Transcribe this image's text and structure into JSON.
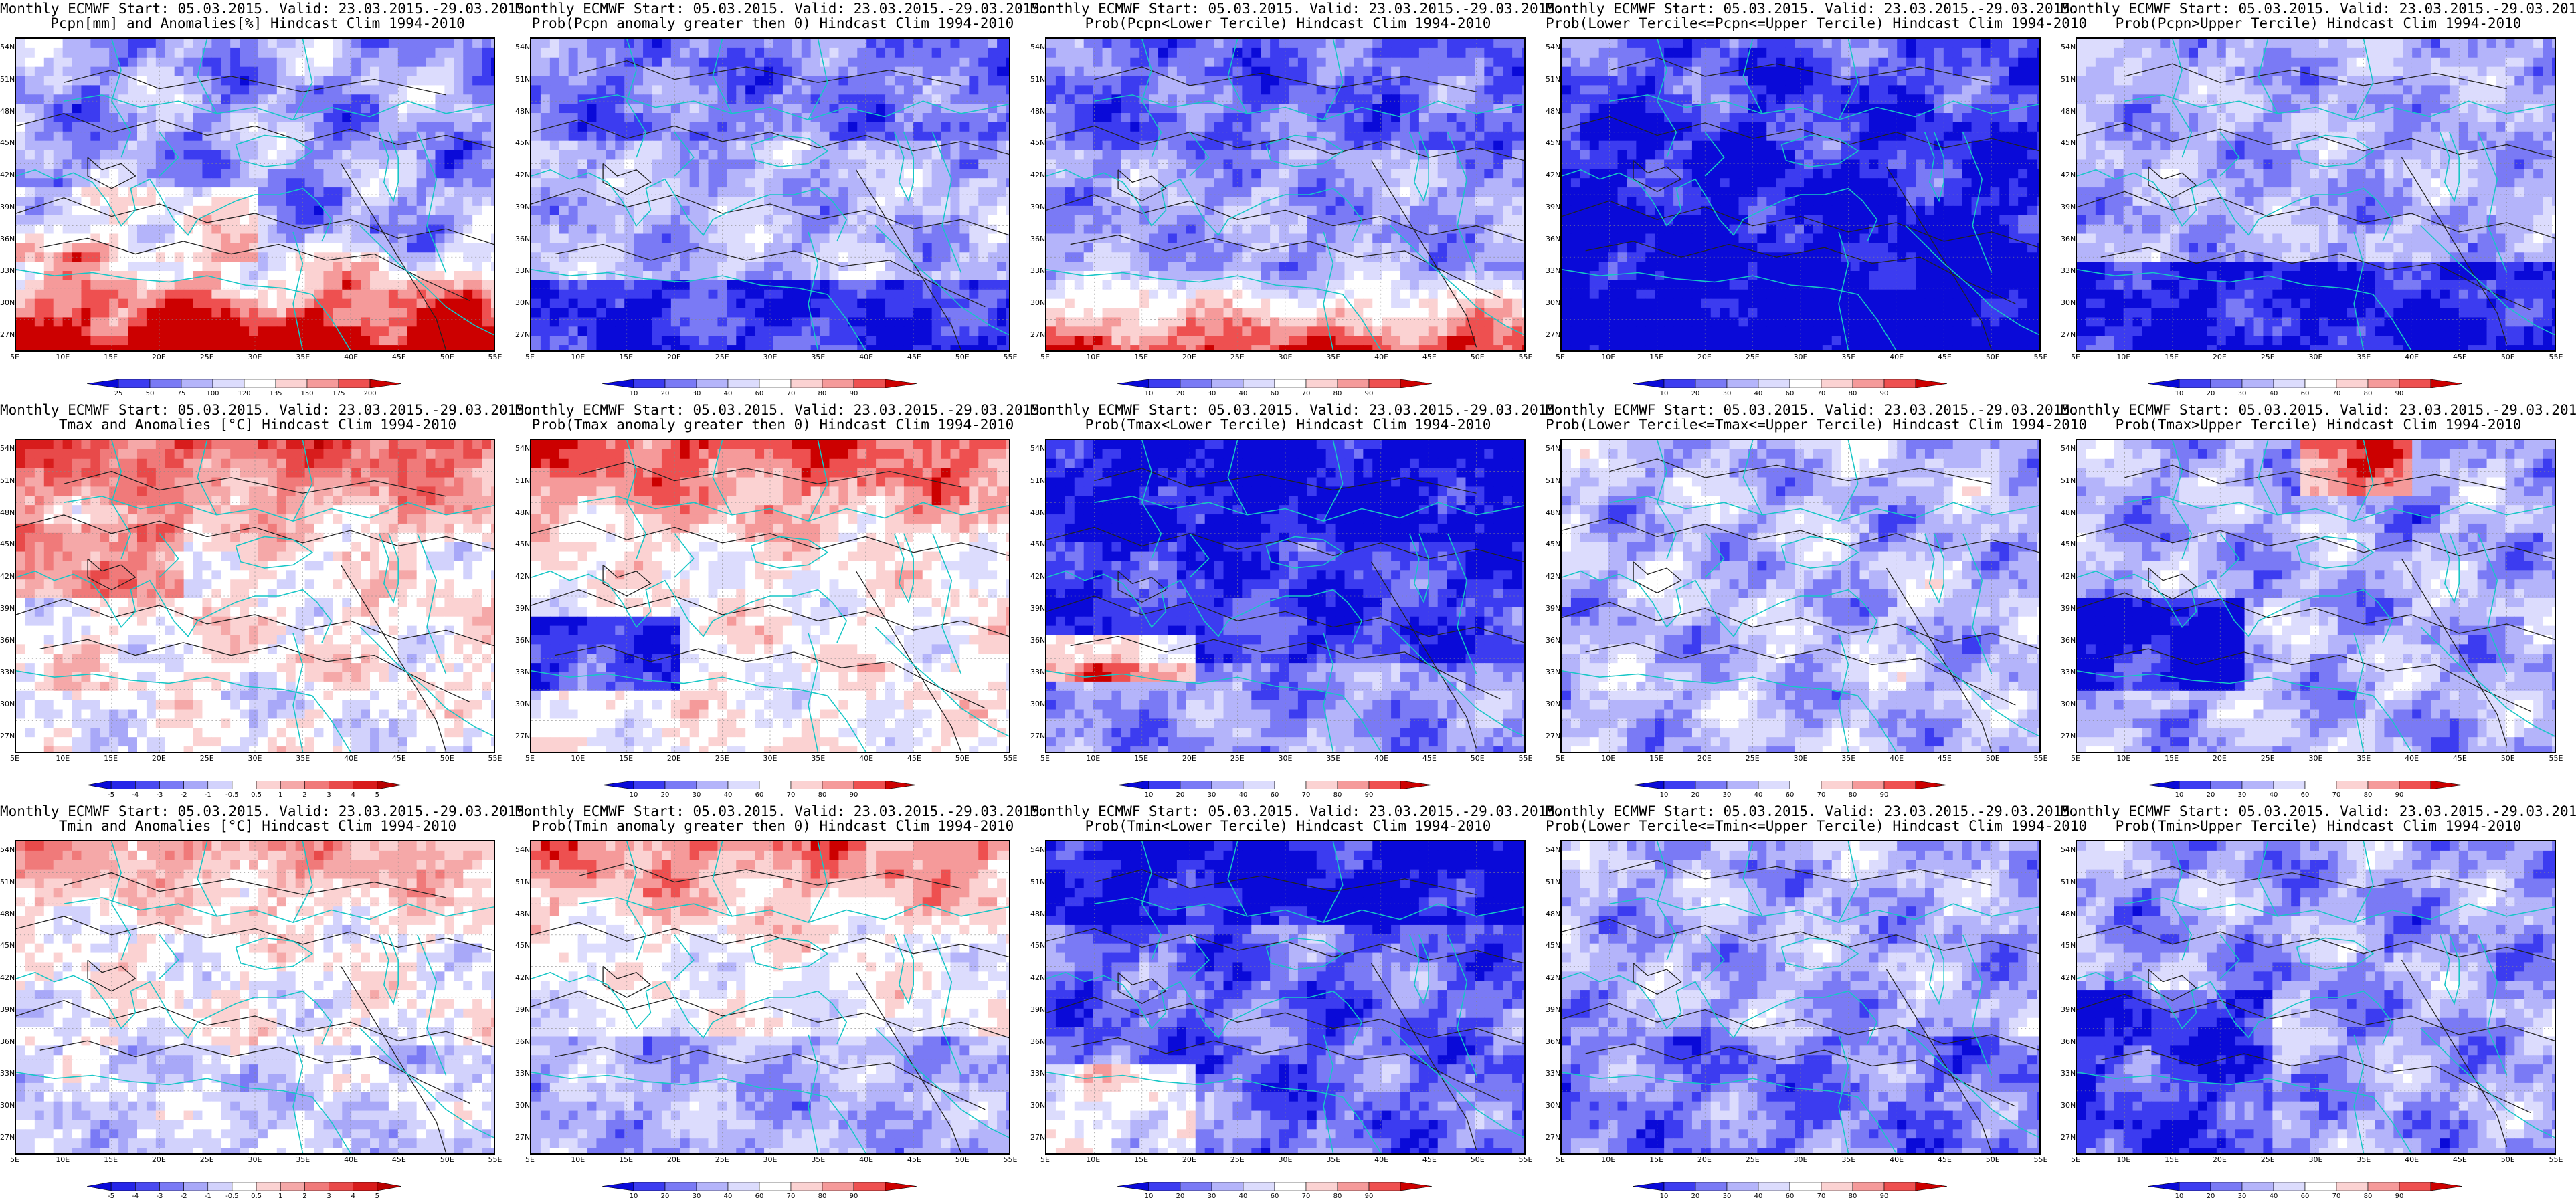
{
  "figure": {
    "panels": [
      {
        "title_line1": "Monthly ECMWF Start: 05.03.2015. Valid: 23.03.2015.-29.03.2015.",
        "title_line2": "Pcpn[mm] and Anomalies[%] Hindcast Clim 1994-2010",
        "scale": "anom_pcpn",
        "pattern": "pcpn_anom"
      },
      {
        "title_line1": "Monthly ECMWF Start: 05.03.2015. Valid: 23.03.2015.-29.03.2015.",
        "title_line2": "Prob(Pcpn anomaly greater then 0) Hindcast Clim 1994-2010",
        "scale": "prob",
        "pattern": "pcpn_p0"
      },
      {
        "title_line1": "Monthly ECMWF Start: 05.03.2015. Valid: 23.03.2015.-29.03.2015.",
        "title_line2": "Prob(Pcpn<Lower Tercile) Hindcast Clim 1994-2010",
        "scale": "prob",
        "pattern": "pcpn_low"
      },
      {
        "title_line1": "Monthly ECMWF Start: 05.03.2015. Valid: 23.03.2015.-29.03.2015.",
        "title_line2": "Prob(Lower Tercile<=Pcpn<=Upper Tercile) Hindcast Clim 1994-2010",
        "scale": "prob",
        "pattern": "pcpn_mid"
      },
      {
        "title_line1": "Monthly ECMWF Start: 05.03.2015. Valid: 23.03.2015.-29.03.2015.",
        "title_line2": "Prob(Pcpn>Upper Tercile) Hindcast Clim 1994-2010",
        "scale": "prob",
        "pattern": "pcpn_up"
      },
      {
        "title_line1": "Monthly ECMWF Start: 05.03.2015. Valid: 23.03.2015.-29.03.2015.",
        "title_line2": "Tmax and Anomalies [°C] Hindcast Clim 1994-2010",
        "scale": "anom_t",
        "pattern": "tmax_anom"
      },
      {
        "title_line1": "Monthly ECMWF Start: 05.03.2015. Valid: 23.03.2015.-29.03.2015.",
        "title_line2": "Prob(Tmax anomaly greater then 0) Hindcast Clim 1994-2010",
        "scale": "prob",
        "pattern": "tmax_p0"
      },
      {
        "title_line1": "Monthly ECMWF Start: 05.03.2015. Valid: 23.03.2015.-29.03.2015.",
        "title_line2": "Prob(Tmax<Lower Tercile) Hindcast Clim 1994-2010",
        "scale": "prob",
        "pattern": "tmax_low"
      },
      {
        "title_line1": "Monthly ECMWF Start: 05.03.2015. Valid: 23.03.2015.-29.03.2015.",
        "title_line2": "Prob(Lower Tercile<=Tmax<=Upper Tercile) Hindcast Clim 1994-2010",
        "scale": "prob",
        "pattern": "tmax_mid"
      },
      {
        "title_line1": "Monthly ECMWF Start: 05.03.2015. Valid: 23.03.2015.-29.03.2015.",
        "title_line2": "Prob(Tmax>Upper Tercile) Hindcast Clim 1994-2010",
        "scale": "prob",
        "pattern": "tmax_up"
      },
      {
        "title_line1": "Monthly ECMWF Start: 05.03.2015. Valid: 23.03.2015.-29.03.2015.",
        "title_line2": "Tmin and Anomalies [°C] Hindcast Clim 1994-2010",
        "scale": "anom_t",
        "pattern": "tmin_anom"
      },
      {
        "title_line1": "Monthly ECMWF Start: 05.03.2015. Valid: 23.03.2015.-29.03.2015.",
        "title_line2": "Prob(Tmin anomaly greater then 0) Hindcast Clim 1994-2010",
        "scale": "prob",
        "pattern": "tmin_p0"
      },
      {
        "title_line1": "Monthly ECMWF Start: 05.03.2015. Valid: 23.03.2015.-29.03.2015.",
        "title_line2": "Prob(Tmin<Lower Tercile) Hindcast Clim 1994-2010",
        "scale": "prob",
        "pattern": "tmin_low"
      },
      {
        "title_line1": "Monthly ECMWF Start: 05.03.2015. Valid: 23.03.2015.-29.03.2015.",
        "title_line2": "Prob(Lower Tercile<=Tmin<=Upper Tercile) Hindcast Clim 1994-2010",
        "scale": "prob",
        "pattern": "tmin_mid"
      },
      {
        "title_line1": "Monthly ECMWF Start: 05.03.2015. Valid: 23.03.2015.-29.03.2015.",
        "title_line2": "Prob(Tmin>Upper Tercile) Hindcast Clim 1994-2010",
        "scale": "prob",
        "pattern": "tmin_up"
      }
    ],
    "lat_labels": [
      "54N",
      "51N",
      "48N",
      "45N",
      "42N",
      "39N",
      "36N",
      "33N",
      "30N",
      "27N"
    ],
    "lon_labels": [
      "5E",
      "10E",
      "15E",
      "20E",
      "25E",
      "30E",
      "35E",
      "40E",
      "45E",
      "50E",
      "55E"
    ],
    "scales": {
      "prob": {
        "ticks": [
          "10",
          "20",
          "30",
          "40",
          "60",
          "70",
          "80",
          "90"
        ],
        "colors": [
          "#0a0ad8",
          "#3c3cf0",
          "#7a7af5",
          "#b4b4fa",
          "#dcdcfd",
          "#ffffff",
          "#fbd2d2",
          "#f59a9a",
          "#ee5050",
          "#cc0000"
        ]
      },
      "anom_pcpn": {
        "ticks": [
          "25",
          "50",
          "75",
          "100",
          "120",
          "135",
          "150",
          "175",
          "200"
        ],
        "colors": [
          "#0a0ad8",
          "#3c3cf0",
          "#7a7af5",
          "#b4b4fa",
          "#dcdcfd",
          "#ffffff",
          "#fbd2d2",
          "#f59a9a",
          "#ee5050",
          "#cc0000"
        ]
      },
      "anom_t": {
        "ticks": [
          "-5",
          "-4",
          "-3",
          "-2",
          "-1",
          "-0.5",
          "0.5",
          "1",
          "2",
          "3",
          "4",
          "5"
        ],
        "colors": [
          "#0a0ad8",
          "#2626e8",
          "#4a4af0",
          "#7a7af5",
          "#a8a8f8",
          "#d2d2fc",
          "#ffffff",
          "#fbd2d2",
          "#f5a8a8",
          "#f07a7a",
          "#e84a4a",
          "#d81c1c",
          "#b80000"
        ]
      }
    }
  }
}
